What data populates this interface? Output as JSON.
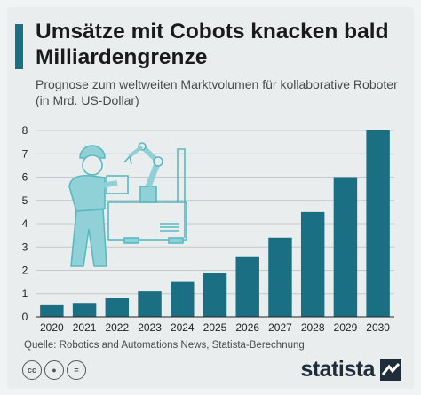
{
  "header": {
    "title": "Umsätze mit Cobots knacken bald Milliardengrenze",
    "subtitle": "Prognose zum weltweiten Marktvolumen für kollaborative Roboter (in Mrd. US-Dollar)"
  },
  "footer": {
    "source": "Quelle: Robotics and Automations News, Statista-Berechnung",
    "brand": "statista",
    "license_icons": [
      "cc-icon",
      "by-icon",
      "nd-icon"
    ]
  },
  "colors": {
    "bar": "#1b6f82",
    "grid": "#c3c9cc",
    "illustration": "#8fd1d6"
  },
  "chart_data": {
    "type": "bar",
    "title": "Umsätze mit Cobots knacken bald Milliardengrenze",
    "subtitle": "Prognose zum weltweiten Marktvolumen für kollaborative Roboter (in Mrd. US-Dollar)",
    "categories": [
      "2020",
      "2021",
      "2022",
      "2023",
      "2024",
      "2025",
      "2026",
      "2027",
      "2028",
      "2029",
      "2030"
    ],
    "values": [
      0.5,
      0.6,
      0.8,
      1.1,
      1.5,
      1.9,
      2.6,
      3.4,
      4.5,
      6.0,
      8.0
    ],
    "xlabel": "",
    "ylabel": "",
    "ylim": [
      0,
      8
    ],
    "yticks": [
      0,
      1,
      2,
      3,
      4,
      5,
      6,
      7,
      8
    ],
    "grid": true,
    "legend": "none"
  }
}
